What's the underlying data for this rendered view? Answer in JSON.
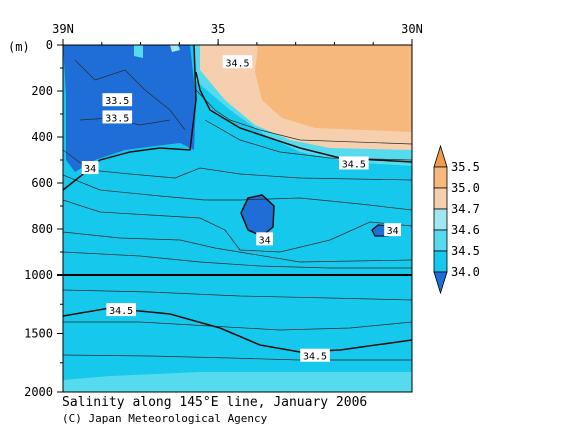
{
  "chart_data": {
    "type": "heatmap",
    "title": "Salinity along 145°E line, January 2006",
    "credit": "(C) Japan Meteorological Agency",
    "y_unit": "(m)",
    "x_ticks": [
      "39N",
      "35",
      "30N"
    ],
    "x_range": [
      39,
      30
    ],
    "upper_panel": {
      "depth_range": [
        0,
        1000
      ],
      "ticks": [
        "0",
        "200",
        "400",
        "600",
        "800",
        "1000"
      ]
    },
    "lower_panel": {
      "depth_range": [
        1000,
        2000
      ],
      "ticks": [
        "1000",
        "1500",
        "2000"
      ]
    },
    "colorbar": {
      "labels": [
        "35.5",
        "35.0",
        "34.7",
        "34.6",
        "34.5",
        "34.0"
      ],
      "colors": [
        "#f09a4c",
        "#f7b87c",
        "#f6cfae",
        "#9fe8f0",
        "#55dbed",
        "#16c8ec",
        "#1f6ed8"
      ]
    },
    "colors": {
      "deep_fresh": "#1f6ed8",
      "fresh": "#16c8ec",
      "mid": "#55dbed",
      "light": "#9fe8f0",
      "salty_pale": "#f6cfae",
      "salty": "#f7b87c"
    },
    "contour_labels": [
      {
        "text": "34.5",
        "lat": 34.5,
        "depth": 75
      },
      {
        "text": "33.5",
        "lat": 37.6,
        "depth": 240
      },
      {
        "text": "33.5",
        "lat": 37.6,
        "depth": 315
      },
      {
        "text": "34",
        "lat": 38.3,
        "depth": 535
      },
      {
        "text": "34.5",
        "lat": 31.5,
        "depth": 515
      },
      {
        "text": "34",
        "lat": 33.8,
        "depth": 845
      },
      {
        "text": "34",
        "lat": 30.5,
        "depth": 805
      },
      {
        "text": "34.5",
        "lat": 37.5,
        "depth": 1300
      },
      {
        "text": "34.5",
        "lat": 32.5,
        "depth": 1690
      }
    ]
  }
}
